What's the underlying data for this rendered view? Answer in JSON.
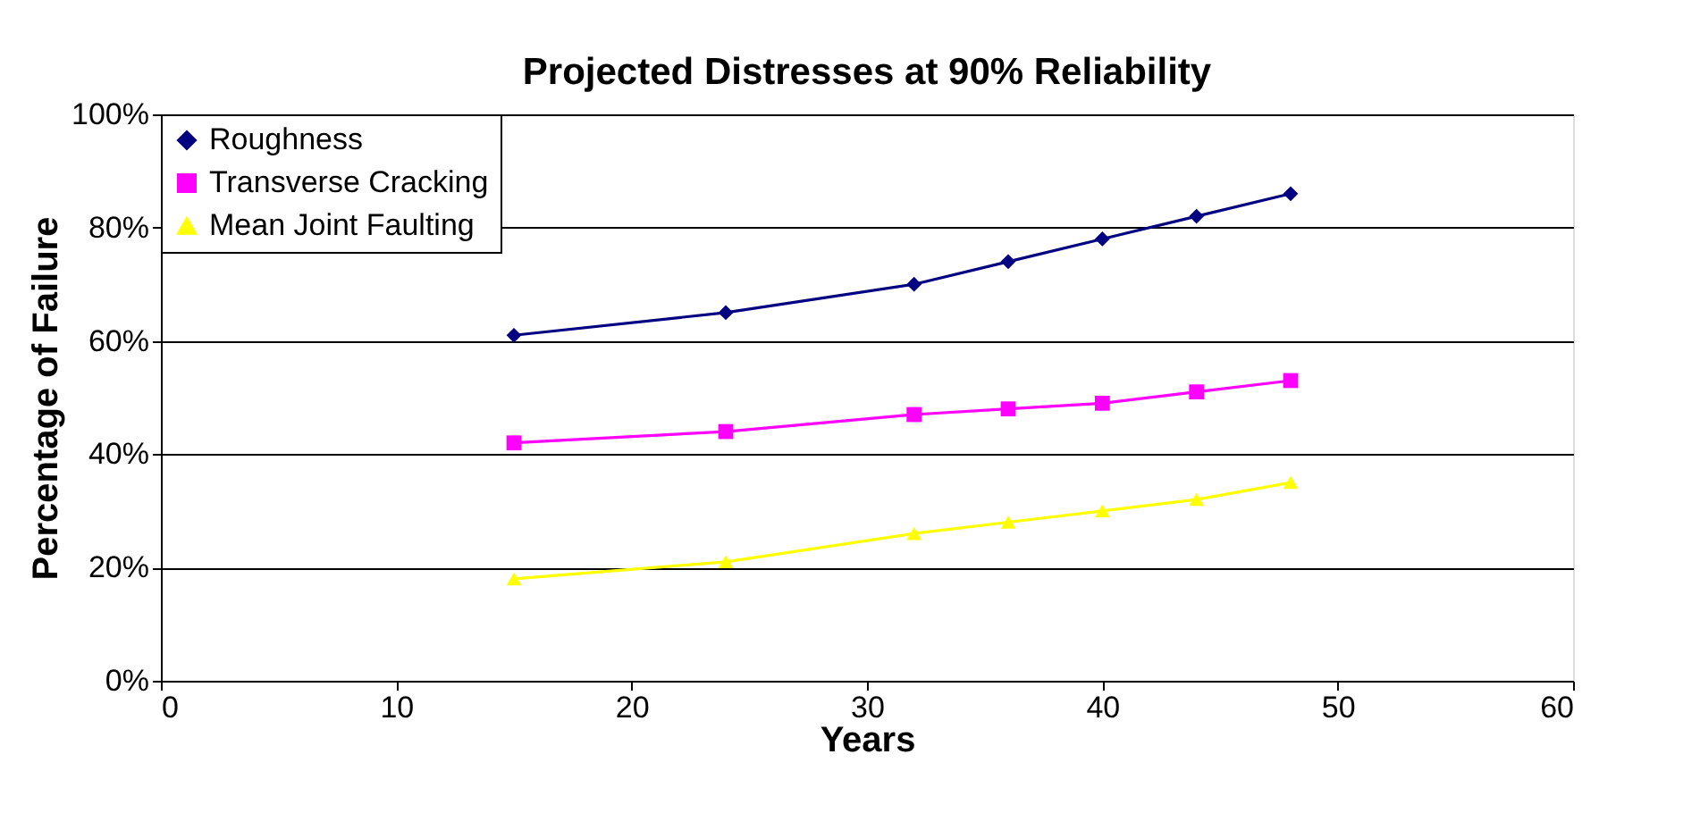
{
  "chart_data": {
    "type": "line",
    "title": "Projected Distresses at 90% Reliability",
    "xlabel": "Years",
    "ylabel": "Percentage of Failure",
    "x": [
      15,
      24,
      32,
      36,
      40,
      44,
      48
    ],
    "series": [
      {
        "name": "Roughness",
        "color": "#000080",
        "marker": "diamond",
        "values": [
          61,
          65,
          70,
          74,
          78,
          82,
          86
        ]
      },
      {
        "name": "Transverse Cracking",
        "color": "#ff00ff",
        "marker": "square",
        "values": [
          42,
          44,
          47,
          48,
          49,
          51,
          53
        ]
      },
      {
        "name": "Mean Joint Faulting",
        "color": "#ffff00",
        "marker": "triangle",
        "values": [
          18,
          21,
          26,
          28,
          30,
          32,
          35
        ]
      }
    ],
    "xlim": [
      0,
      60
    ],
    "xticks": [
      0,
      10,
      20,
      30,
      40,
      50,
      60
    ],
    "ylim": [
      0,
      100
    ],
    "yticks": [
      {
        "value": 0,
        "label": "0%"
      },
      {
        "value": 20,
        "label": "20%"
      },
      {
        "value": 40,
        "label": "40%"
      },
      {
        "value": 60,
        "label": "60%"
      },
      {
        "value": 80,
        "label": "80%"
      },
      {
        "value": 100,
        "label": "100%"
      }
    ],
    "grid": "y",
    "legend": "top left",
    "line_style": "solid"
  }
}
